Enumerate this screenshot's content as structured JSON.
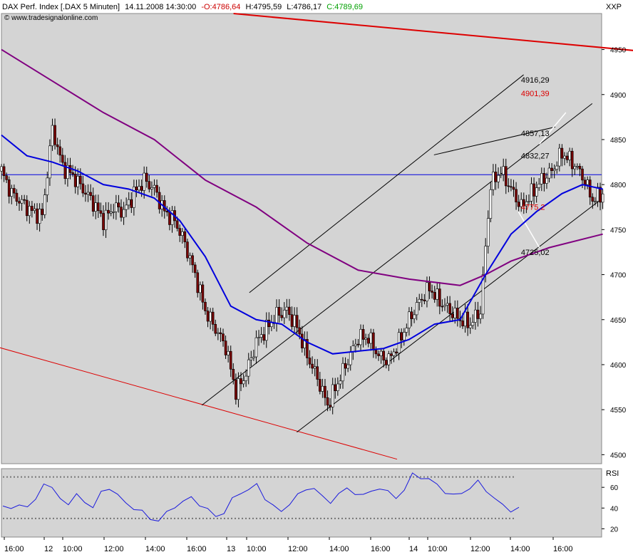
{
  "header": {
    "instrument": "DAX Perf. Index [.DAX  5 Minuten]",
    "datetime": "14.11.2008 14:30:00",
    "open": "-O:4786,64",
    "high": "H:4795,59",
    "low": "L:4786,17",
    "close": "C:4789,69",
    "copyright": "© www.tradesignalonline.com",
    "symbol_label": "XXP"
  },
  "colors": {
    "panel_bg": "#d4d4d4",
    "open_neg": "#cc0000",
    "close_pos": "#00a000",
    "candle_up": "#ffffff",
    "candle_down": "#7a0000",
    "ma_fast": "#0000dd",
    "ma_slow": "#800080",
    "trend_red": "#dd0000",
    "box_fill": "#a6a6e8",
    "rsi": "#1a1add"
  },
  "chart_data": [
    {
      "type": "candlestick",
      "title": "DAX Perf. Index [.DAX  5 Minuten]",
      "ylim": [
        4490,
        4990
      ],
      "y_ticks": [
        4500,
        4550,
        4600,
        4650,
        4700,
        4750,
        4800,
        4850,
        4900,
        4950
      ],
      "x_tick_labels": [
        "16:00",
        "12",
        "10:00",
        "12:00",
        "14:00",
        "16:00",
        "13",
        "10:00",
        "12:00",
        "14:00",
        "16:00",
        "14",
        "10:00",
        "12:00",
        "14:00",
        "16:00"
      ],
      "horizontal_line": 4811,
      "levels": [
        {
          "label": "4916,29",
          "value": 4916.29,
          "color": "#000000"
        },
        {
          "label": "4901,39",
          "value": 4901.39,
          "color": "#dd0000"
        },
        {
          "label": "4857,13",
          "value": 4857.13,
          "color": "#000000"
        },
        {
          "label": "4832,27",
          "value": 4832.27,
          "color": "#000000"
        },
        {
          "label": "4775,2",
          "value": 4775.2,
          "color": "#dd0000"
        },
        {
          "label": "4725,02",
          "value": 4725.02,
          "color": "#000000"
        }
      ],
      "range_box": {
        "high": 4832.27,
        "low": 4775.2
      },
      "price_path": [
        [
          0,
          4815
        ],
        [
          4,
          4790
        ],
        [
          8,
          4780
        ],
        [
          12,
          4770
        ],
        [
          16,
          4765
        ],
        [
          20,
          4862
        ],
        [
          24,
          4820
        ],
        [
          28,
          4810
        ],
        [
          32,
          4795
        ],
        [
          36,
          4780
        ],
        [
          40,
          4760
        ],
        [
          44,
          4775
        ],
        [
          48,
          4770
        ],
        [
          52,
          4790
        ],
        [
          56,
          4805
        ],
        [
          60,
          4795
        ],
        [
          64,
          4770
        ],
        [
          68,
          4760
        ],
        [
          72,
          4735
        ],
        [
          76,
          4700
        ],
        [
          80,
          4660
        ],
        [
          84,
          4640
        ],
        [
          88,
          4620
        ],
        [
          92,
          4570
        ],
        [
          96,
          4590
        ],
        [
          100,
          4625
        ],
        [
          104,
          4640
        ],
        [
          108,
          4655
        ],
        [
          112,
          4660
        ],
        [
          116,
          4642
        ],
        [
          120,
          4610
        ],
        [
          124,
          4585
        ],
        [
          128,
          4555
        ],
        [
          132,
          4580
        ],
        [
          136,
          4605
        ],
        [
          140,
          4630
        ],
        [
          144,
          4630
        ],
        [
          148,
          4610
        ],
        [
          152,
          4605
        ],
        [
          156,
          4625
        ],
        [
          160,
          4650
        ],
        [
          164,
          4670
        ],
        [
          168,
          4685
        ],
        [
          172,
          4670
        ],
        [
          176,
          4660
        ],
        [
          180,
          4650
        ],
        [
          184,
          4645
        ],
        [
          188,
          4660
        ],
        [
          192,
          4800
        ],
        [
          196,
          4815
        ],
        [
          200,
          4795
        ],
        [
          204,
          4775
        ],
        [
          208,
          4790
        ],
        [
          212,
          4805
        ],
        [
          216,
          4815
        ],
        [
          220,
          4835
        ],
        [
          224,
          4825
        ],
        [
          228,
          4810
        ],
        [
          232,
          4783
        ],
        [
          236,
          4790
        ]
      ],
      "ma_fast": [
        [
          0,
          4855
        ],
        [
          10,
          4832
        ],
        [
          20,
          4825
        ],
        [
          30,
          4815
        ],
        [
          40,
          4800
        ],
        [
          50,
          4795
        ],
        [
          60,
          4785
        ],
        [
          70,
          4760
        ],
        [
          80,
          4720
        ],
        [
          90,
          4665
        ],
        [
          100,
          4650
        ],
        [
          110,
          4645
        ],
        [
          120,
          4625
        ],
        [
          130,
          4612
        ],
        [
          140,
          4615
        ],
        [
          150,
          4618
        ],
        [
          160,
          4628
        ],
        [
          170,
          4645
        ],
        [
          180,
          4650
        ],
        [
          190,
          4700
        ],
        [
          200,
          4745
        ],
        [
          210,
          4770
        ],
        [
          220,
          4790
        ],
        [
          228,
          4800
        ],
        [
          236,
          4795
        ]
      ],
      "ma_slow": [
        [
          0,
          4950
        ],
        [
          20,
          4915
        ],
        [
          40,
          4880
        ],
        [
          60,
          4850
        ],
        [
          80,
          4805
        ],
        [
          100,
          4775
        ],
        [
          120,
          4735
        ],
        [
          140,
          4705
        ],
        [
          160,
          4695
        ],
        [
          180,
          4688
        ],
        [
          190,
          4700
        ],
        [
          200,
          4715
        ],
        [
          215,
          4730
        ],
        [
          236,
          4745
        ]
      ]
    },
    {
      "type": "line",
      "title": "RSI",
      "ylim": [
        12,
        78
      ],
      "y_ticks": [
        20,
        40,
        60
      ],
      "reference_lines": [
        30,
        70
      ],
      "values": [
        42,
        38,
        45,
        40,
        48,
        65,
        58,
        50,
        44,
        52,
        47,
        40,
        55,
        60,
        52,
        45,
        40,
        36,
        30,
        28,
        35,
        42,
        46,
        50,
        44,
        38,
        32,
        36,
        48,
        55,
        58,
        62,
        50,
        42,
        36,
        45,
        52,
        58,
        60,
        50,
        46,
        54,
        58,
        55,
        52,
        56,
        60,
        55,
        50,
        58,
        72,
        70,
        68,
        62,
        56,
        52,
        54,
        60,
        65,
        57,
        50,
        42,
        38,
        40
      ]
    }
  ]
}
